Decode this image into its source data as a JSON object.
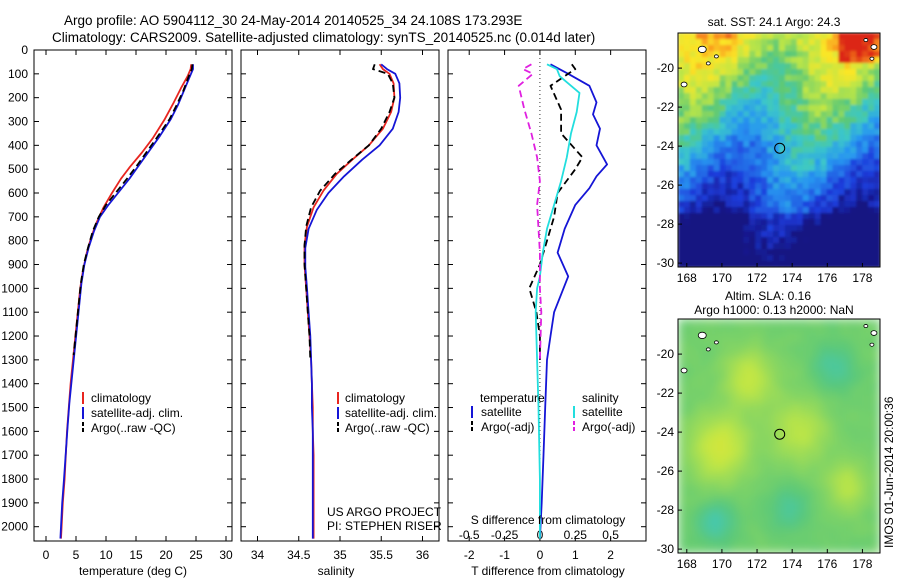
{
  "header": {
    "line1": "Argo profile: AO 5904112_30 24-May-2014 20140525_34 24.108S 173.293E",
    "line2": "Climatology: CARS2009. Satellite-adjusted climatology: synTS_20140525.nc (0.014d later)"
  },
  "colors": {
    "climatology": "#e8251f",
    "satellite": "#1515d6",
    "argo": "#000000",
    "satellite_s": "#22dede",
    "argo_s": "#e020e0"
  },
  "credit": {
    "line1": "US ARGO PROJECT",
    "line2": "PI: STEPHEN RISER"
  },
  "side_label": "IMOS 01-Jun-2014 20:00:36",
  "chart_data": [
    {
      "id": "temperature",
      "type": "line",
      "xlabel": "temperature (deg C)",
      "ylabel": "",
      "xlim": [
        -2,
        31
      ],
      "ylim": [
        2060,
        0
      ],
      "xticks": [
        0,
        5,
        10,
        15,
        20,
        25,
        30
      ],
      "yticks": [
        0,
        100,
        200,
        300,
        400,
        500,
        600,
        700,
        800,
        900,
        1000,
        1100,
        1200,
        1300,
        1400,
        1500,
        1600,
        1700,
        1800,
        1900,
        2000
      ],
      "legend": [
        "climatology",
        "satellite-adj. clim.",
        "Argo(..raw -QC)"
      ],
      "series": [
        {
          "name": "climatology",
          "style": "solid",
          "color": "#e8251f",
          "points": [
            [
              24.2,
              60
            ],
            [
              24.1,
              80
            ],
            [
              23.6,
              110
            ],
            [
              22.5,
              160
            ],
            [
              21.3,
              220
            ],
            [
              19.8,
              290
            ],
            [
              17.8,
              370
            ],
            [
              16.0,
              430
            ],
            [
              14.0,
              490
            ],
            [
              12.5,
              540
            ],
            [
              11.0,
              600
            ],
            [
              9.6,
              660
            ],
            [
              8.5,
              720
            ],
            [
              7.6,
              780
            ],
            [
              6.8,
              850
            ],
            [
              6.2,
              920
            ],
            [
              5.7,
              1000
            ],
            [
              5.3,
              1100
            ],
            [
              4.9,
              1200
            ],
            [
              4.5,
              1300
            ],
            [
              4.1,
              1400
            ],
            [
              3.8,
              1500
            ],
            [
              3.5,
              1600
            ],
            [
              3.3,
              1700
            ],
            [
              3.1,
              1800
            ],
            [
              2.8,
              1900
            ],
            [
              2.6,
              2000
            ],
            [
              2.5,
              2050
            ]
          ]
        },
        {
          "name": "satellite-adj. clim.",
          "style": "solid",
          "color": "#1515d6",
          "points": [
            [
              24.5,
              60
            ],
            [
              24.5,
              80
            ],
            [
              24.0,
              110
            ],
            [
              23.0,
              170
            ],
            [
              22.0,
              230
            ],
            [
              20.8,
              290
            ],
            [
              19.0,
              360
            ],
            [
              17.3,
              420
            ],
            [
              15.6,
              480
            ],
            [
              13.9,
              540
            ],
            [
              12.0,
              600
            ],
            [
              10.4,
              650
            ],
            [
              9.0,
              700
            ],
            [
              8.0,
              760
            ],
            [
              7.1,
              830
            ],
            [
              6.4,
              900
            ],
            [
              5.9,
              980
            ],
            [
              5.5,
              1080
            ],
            [
              5.1,
              1180
            ],
            [
              4.7,
              1280
            ],
            [
              4.3,
              1380
            ],
            [
              3.9,
              1480
            ],
            [
              3.6,
              1580
            ],
            [
              3.3,
              1690
            ],
            [
              3.0,
              1800
            ],
            [
              2.7,
              1900
            ],
            [
              2.5,
              2000
            ],
            [
              2.4,
              2050
            ]
          ]
        },
        {
          "name": "Argo(..raw -QC)",
          "style": "dashed",
          "color": "#000000",
          "points": [
            [
              24.4,
              60
            ],
            [
              24.3,
              80
            ],
            [
              23.8,
              110
            ],
            [
              22.9,
              170
            ],
            [
              21.8,
              230
            ],
            [
              20.6,
              290
            ],
            [
              18.7,
              360
            ],
            [
              17.0,
              420
            ],
            [
              15.3,
              480
            ],
            [
              13.5,
              540
            ],
            [
              11.6,
              600
            ],
            [
              10.0,
              650
            ],
            [
              8.8,
              700
            ],
            [
              7.8,
              760
            ],
            [
              7.0,
              830
            ],
            [
              6.3,
              900
            ],
            [
              5.8,
              980
            ],
            [
              5.4,
              1080
            ],
            [
              5.0,
              1180
            ],
            [
              4.6,
              1280
            ]
          ]
        }
      ]
    },
    {
      "id": "salinity",
      "type": "line",
      "xlabel": "salinity",
      "ylabel": "",
      "xlim": [
        33.8,
        36.2
      ],
      "ylim": [
        2060,
        0
      ],
      "xticks": [
        34,
        34.5,
        35,
        35.5,
        36
      ],
      "legend": [
        "climatology",
        "satellite-adj. clim.",
        "Argo(..raw -QC)"
      ],
      "series": [
        {
          "name": "climatology",
          "style": "solid",
          "color": "#e8251f",
          "points": [
            [
              35.48,
              60
            ],
            [
              35.52,
              80
            ],
            [
              35.6,
              100
            ],
            [
              35.65,
              140
            ],
            [
              35.66,
              200
            ],
            [
              35.62,
              260
            ],
            [
              35.52,
              330
            ],
            [
              35.35,
              400
            ],
            [
              35.15,
              460
            ],
            [
              34.96,
              520
            ],
            [
              34.8,
              590
            ],
            [
              34.68,
              660
            ],
            [
              34.6,
              740
            ],
            [
              34.57,
              820
            ],
            [
              34.57,
              900
            ],
            [
              34.59,
              1000
            ],
            [
              34.61,
              1100
            ],
            [
              34.63,
              1200
            ],
            [
              34.65,
              1300
            ],
            [
              34.66,
              1400
            ],
            [
              34.67,
              1500
            ],
            [
              34.67,
              1600
            ],
            [
              34.68,
              1700
            ],
            [
              34.68,
              1800
            ],
            [
              34.68,
              1900
            ],
            [
              34.68,
              2000
            ],
            [
              34.68,
              2050
            ]
          ]
        },
        {
          "name": "satellite-adj. clim.",
          "style": "solid",
          "color": "#1515d6",
          "points": [
            [
              35.5,
              60
            ],
            [
              35.57,
              80
            ],
            [
              35.67,
              100
            ],
            [
              35.72,
              140
            ],
            [
              35.73,
              200
            ],
            [
              35.71,
              260
            ],
            [
              35.64,
              330
            ],
            [
              35.48,
              400
            ],
            [
              35.27,
              460
            ],
            [
              35.05,
              530
            ],
            [
              34.86,
              600
            ],
            [
              34.72,
              670
            ],
            [
              34.62,
              750
            ],
            [
              34.58,
              830
            ],
            [
              34.58,
              910
            ],
            [
              34.6,
              1000
            ],
            [
              34.62,
              1100
            ],
            [
              34.64,
              1200
            ],
            [
              34.65,
              1300
            ],
            [
              34.66,
              1400
            ],
            [
              34.66,
              1500
            ],
            [
              34.67,
              1600
            ],
            [
              34.67,
              1700
            ],
            [
              34.67,
              1800
            ],
            [
              34.67,
              1900
            ],
            [
              34.67,
              2000
            ],
            [
              34.67,
              2050
            ]
          ]
        },
        {
          "name": "Argo(..raw -QC)",
          "style": "dashed",
          "color": "#000000",
          "points": [
            [
              35.42,
              60
            ],
            [
              35.4,
              80
            ],
            [
              35.58,
              100
            ],
            [
              35.64,
              140
            ],
            [
              35.66,
              200
            ],
            [
              35.6,
              260
            ],
            [
              35.5,
              330
            ],
            [
              35.35,
              400
            ],
            [
              35.14,
              460
            ],
            [
              34.94,
              520
            ],
            [
              34.76,
              590
            ],
            [
              34.65,
              660
            ],
            [
              34.59,
              740
            ],
            [
              34.57,
              820
            ],
            [
              34.57,
              900
            ],
            [
              34.59,
              1000
            ],
            [
              34.61,
              1100
            ],
            [
              34.63,
              1200
            ],
            [
              34.64,
              1300
            ]
          ]
        }
      ]
    },
    {
      "id": "difference",
      "type": "line",
      "xlabel": "T difference from climatology",
      "xlabel2": "S difference from climatology",
      "xlim": [
        -2.6,
        3.0
      ],
      "ylim": [
        2060,
        0
      ],
      "xticks": [
        -2,
        -1,
        0,
        1,
        2
      ],
      "xticks_s": [
        -0.5,
        -0.25,
        0,
        0.25,
        0.5
      ],
      "legend_titles": [
        "temperature",
        "salinity"
      ],
      "legend": [
        "satellite",
        "Argo(-adj)",
        "satellite",
        "Argo(-adj)"
      ],
      "series": [
        {
          "name": "satellite",
          "quantity": "temperature",
          "style": "solid",
          "color": "#1515d6",
          "points": [
            [
              0.3,
              60
            ],
            [
              0.8,
              100
            ],
            [
              1.4,
              150
            ],
            [
              1.6,
              220
            ],
            [
              1.5,
              270
            ],
            [
              1.7,
              330
            ],
            [
              1.6,
              400
            ],
            [
              1.9,
              480
            ],
            [
              1.6,
              530
            ],
            [
              1.4,
              580
            ],
            [
              1.0,
              650
            ],
            [
              0.7,
              750
            ],
            [
              0.5,
              850
            ],
            [
              0.8,
              950
            ],
            [
              0.4,
              1100
            ],
            [
              0.3,
              1200
            ],
            [
              0.2,
              1300
            ],
            [
              0.15,
              1500
            ],
            [
              0.1,
              1700
            ],
            [
              0.05,
              1900
            ],
            [
              0.0,
              2050
            ]
          ]
        },
        {
          "name": "Argo(-adj)",
          "quantity": "temperature",
          "style": "dashed",
          "color": "#000000",
          "points": [
            [
              0.9,
              60
            ],
            [
              1.0,
              80
            ],
            [
              0.8,
              100
            ],
            [
              0.3,
              150
            ],
            [
              0.6,
              250
            ],
            [
              0.6,
              350
            ],
            [
              1.2,
              450
            ],
            [
              1.0,
              500
            ],
            [
              0.5,
              600
            ],
            [
              0.4,
              700
            ],
            [
              0.2,
              800
            ],
            [
              0.0,
              900
            ],
            [
              -0.3,
              1000
            ],
            [
              -0.1,
              1100
            ],
            [
              0.0,
              1200
            ],
            [
              0.0,
              1300
            ]
          ]
        },
        {
          "name": "satellite",
          "quantity": "salinity",
          "style": "solid",
          "color": "#22dede",
          "points": [
            [
              0.05,
              60
            ],
            [
              0.12,
              80
            ],
            [
              0.14,
              110
            ],
            [
              0.28,
              180
            ],
            [
              0.26,
              260
            ],
            [
              0.22,
              350
            ],
            [
              0.19,
              450
            ],
            [
              0.15,
              550
            ],
            [
              0.1,
              650
            ],
            [
              0.05,
              750
            ],
            [
              0.02,
              850
            ],
            [
              0.0,
              950
            ],
            [
              -0.02,
              1000
            ],
            [
              -0.03,
              1100
            ],
            [
              -0.02,
              1300
            ],
            [
              -0.01,
              1500
            ],
            [
              0.0,
              1800
            ],
            [
              0.0,
              2050
            ]
          ]
        },
        {
          "name": "Argo(-adj)",
          "quantity": "salinity",
          "style": "dashed",
          "color": "#e020e0",
          "points": [
            [
              -0.06,
              60
            ],
            [
              -0.12,
              80
            ],
            [
              -0.05,
              100
            ],
            [
              -0.15,
              150
            ],
            [
              -0.11,
              250
            ],
            [
              -0.06,
              350
            ],
            [
              -0.02,
              450
            ],
            [
              0.0,
              550
            ],
            [
              -0.02,
              650
            ],
            [
              -0.01,
              750
            ],
            [
              0.0,
              850
            ],
            [
              0.0,
              1000
            ],
            [
              0.01,
              1100
            ],
            [
              0.0,
              1300
            ]
          ]
        }
      ]
    },
    {
      "id": "sst-map",
      "type": "heatmap",
      "title": "sat. SST: 24.1  Argo: 24.3",
      "xlim": [
        167.5,
        179.0
      ],
      "ylim": [
        -30.2,
        -18.2
      ],
      "xticks": [
        168,
        170,
        172,
        174,
        176,
        178
      ],
      "yticks": [
        -20,
        -22,
        -24,
        -26,
        -28,
        -30
      ],
      "marker": {
        "lon": 173.29,
        "lat": -24.11
      }
    },
    {
      "id": "sla-map",
      "type": "heatmap",
      "title_line1": "Altim. SLA: 0.16",
      "title_line2": "Argo h1000: 0.13 h2000: NaN",
      "xlim": [
        167.5,
        179.0
      ],
      "ylim": [
        -30.2,
        -18.2
      ],
      "xticks": [
        168,
        170,
        172,
        174,
        176,
        178
      ],
      "yticks": [
        -20,
        -22,
        -24,
        -26,
        -28,
        -30
      ],
      "marker": {
        "lon": 173.29,
        "lat": -24.11
      }
    }
  ]
}
